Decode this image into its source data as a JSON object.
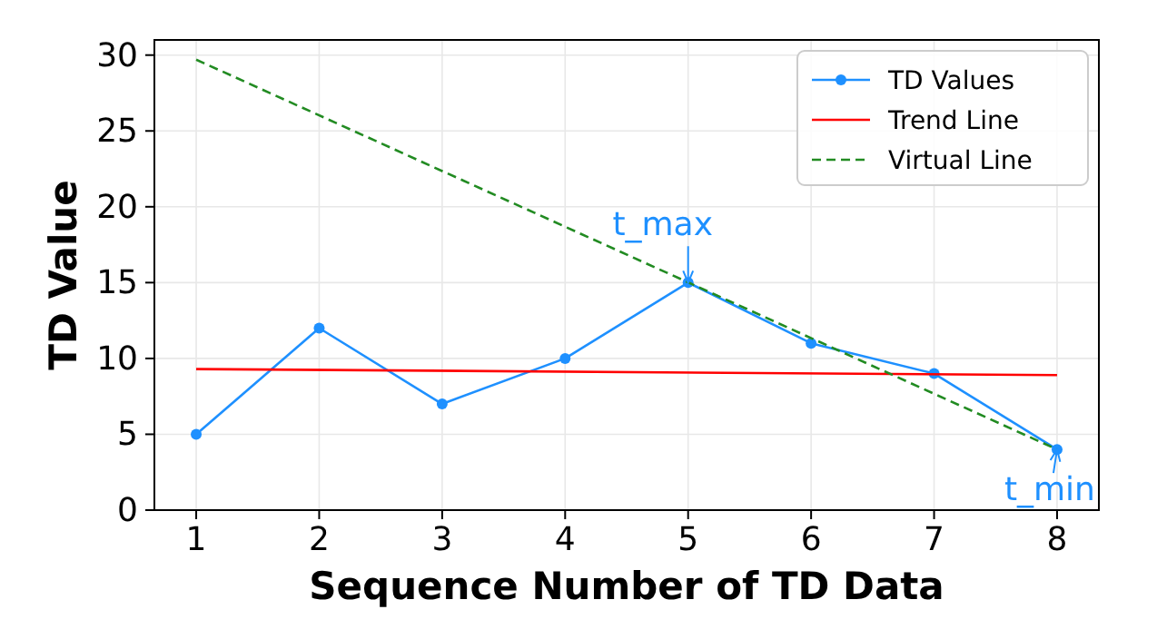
{
  "chart_data": {
    "type": "line",
    "xlabel": "Sequence Number of TD Data",
    "ylabel": "TD Value",
    "xlim": [
      0.66,
      8.34
    ],
    "ylim": [
      0,
      31
    ],
    "xticks": [
      1,
      2,
      3,
      4,
      5,
      6,
      7,
      8
    ],
    "yticks": [
      0,
      5,
      10,
      15,
      20,
      25,
      30
    ],
    "grid": true,
    "legend": "top right",
    "series": [
      {
        "name": "TD Values",
        "color": "#1e90ff",
        "x": [
          1,
          2,
          3,
          4,
          5,
          6,
          7,
          8
        ],
        "values": [
          5,
          12,
          7,
          10,
          15,
          11,
          9,
          4
        ],
        "marker": "circle",
        "line_style": "solid"
      },
      {
        "name": "Trend Line",
        "color": "#ff0000",
        "x": [
          1,
          8
        ],
        "values": [
          9.3,
          8.9
        ],
        "marker": "none",
        "line_style": "solid"
      },
      {
        "name": "Virtual Line",
        "color": "#228b22",
        "x": [
          1,
          8
        ],
        "values": [
          29.7,
          4
        ],
        "marker": "none",
        "line_style": "dashed"
      }
    ],
    "annotations": [
      {
        "text": "t_max",
        "x": 5,
        "y": 15
      },
      {
        "text": "t_min",
        "x": 8,
        "y": 4
      }
    ]
  }
}
